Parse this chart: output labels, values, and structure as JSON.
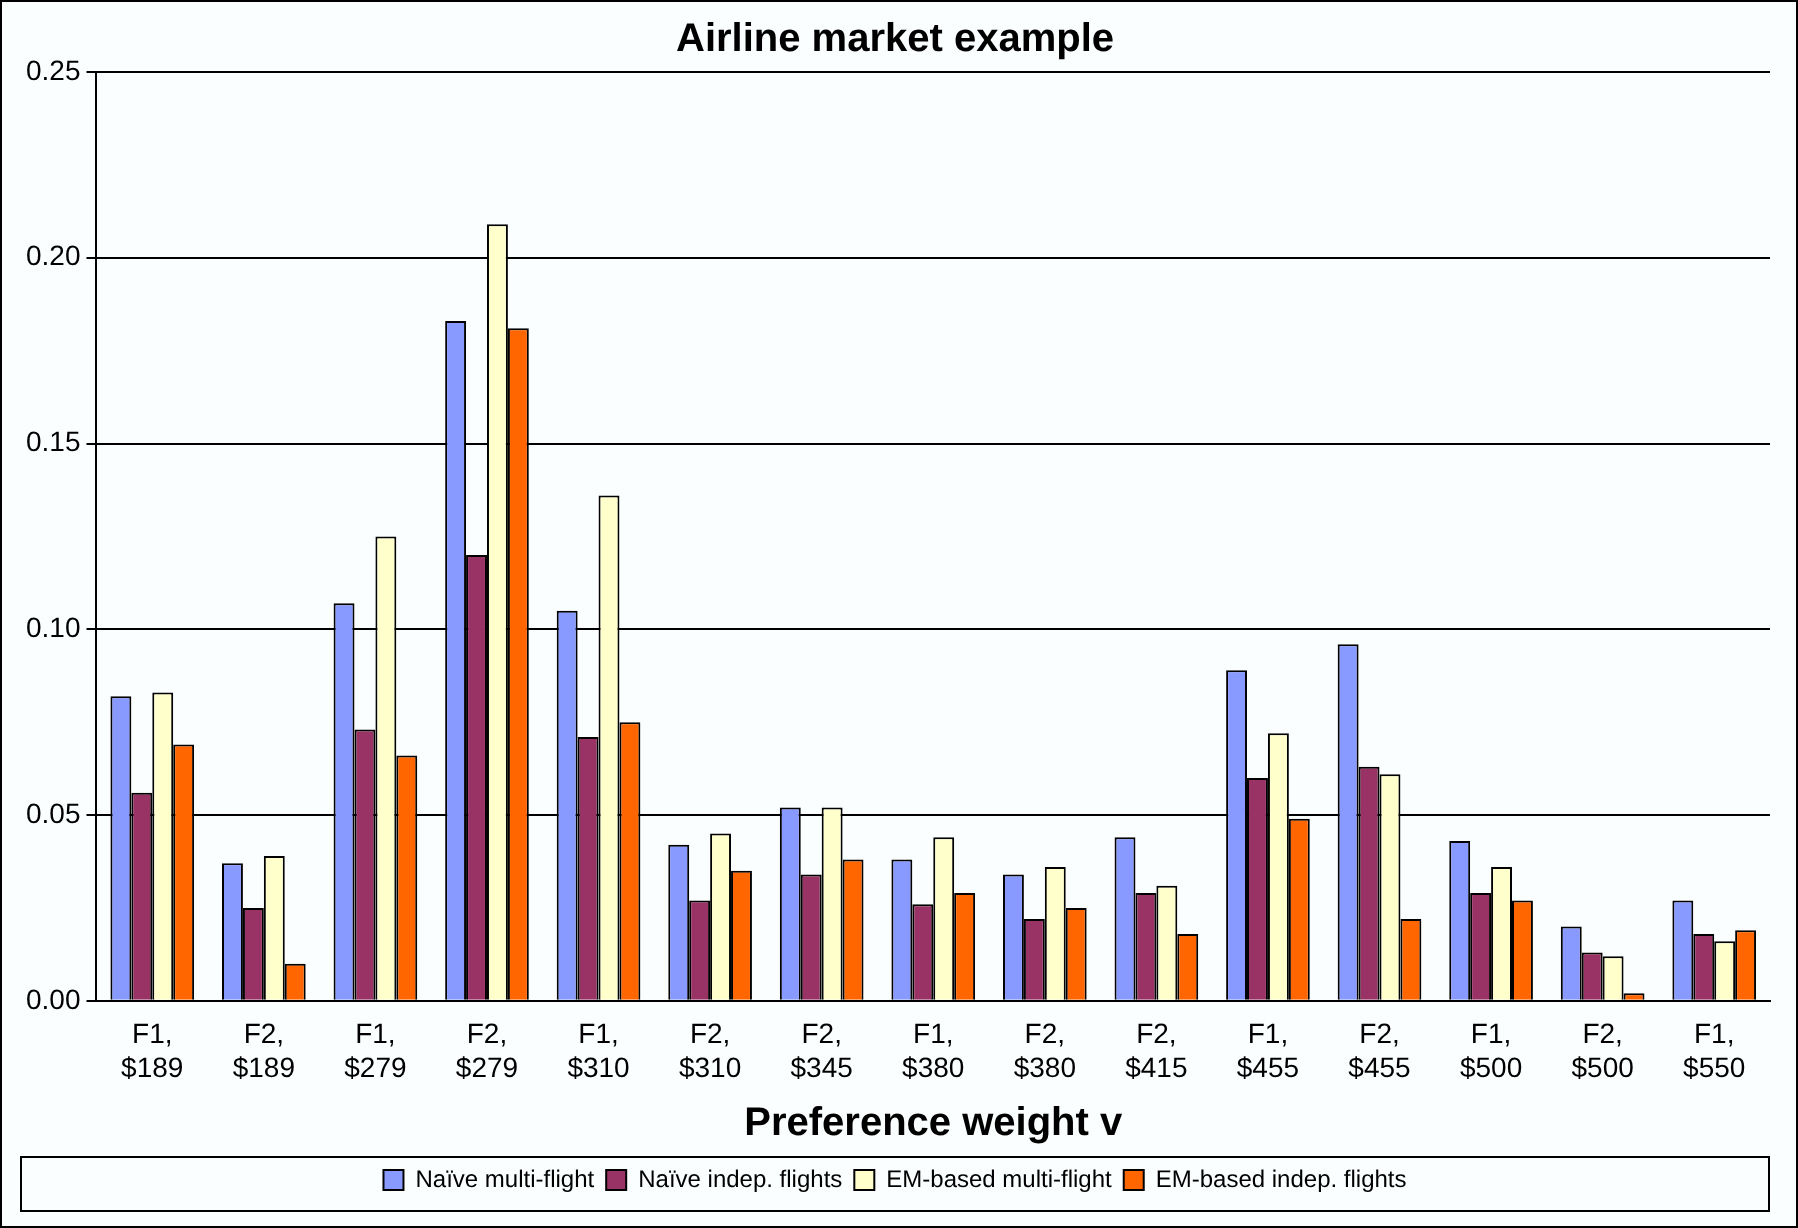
{
  "chart_data": {
    "type": "bar",
    "title": "Airline market example",
    "xlabel": "Preference weight v",
    "categories": [
      "F1, $189",
      "F2, $189",
      "F1, $279",
      "F2, $279",
      "F1, $310",
      "F2, $310",
      "F2, $345",
      "F1, $380",
      "F2, $380",
      "F2, $415",
      "F1, $455",
      "F2, $455",
      "F1, $500",
      "F2, $500",
      "F1, $550"
    ],
    "series": [
      {
        "name": "Naïve multi-flight",
        "color": "#8899ff",
        "values": [
          0.082,
          0.037,
          0.107,
          0.183,
          0.105,
          0.042,
          0.052,
          0.038,
          0.034,
          0.044,
          0.089,
          0.096,
          0.043,
          0.02,
          0.027
        ]
      },
      {
        "name": "Naïve indep. flights",
        "color": "#993366",
        "values": [
          0.056,
          0.025,
          0.073,
          0.12,
          0.071,
          0.027,
          0.034,
          0.026,
          0.022,
          0.029,
          0.06,
          0.063,
          0.029,
          0.013,
          0.018
        ]
      },
      {
        "name": "EM-based multi-flight",
        "color": "#ffffcc",
        "values": [
          0.083,
          0.039,
          0.125,
          0.209,
          0.136,
          0.045,
          0.052,
          0.044,
          0.036,
          0.031,
          0.072,
          0.061,
          0.036,
          0.012,
          0.016
        ]
      },
      {
        "name": "EM-based indep. flights",
        "color": "#ff6600",
        "values": [
          0.069,
          0.01,
          0.066,
          0.181,
          0.075,
          0.035,
          0.038,
          0.029,
          0.025,
          0.018,
          0.049,
          0.022,
          0.027,
          0.002,
          0.019
        ]
      }
    ],
    "ylim": [
      0,
      0.25
    ],
    "yticks": [
      {
        "value": 0,
        "label": "0.00"
      },
      {
        "value": 0.05,
        "label": "0.05"
      },
      {
        "value": 0.1,
        "label": "0.10"
      },
      {
        "value": 0.15,
        "label": "0.15"
      },
      {
        "value": 0.2,
        "label": "0.20"
      },
      {
        "value": 0.25,
        "label": "0.25"
      }
    ],
    "grid": "y",
    "legend": "bottom"
  }
}
